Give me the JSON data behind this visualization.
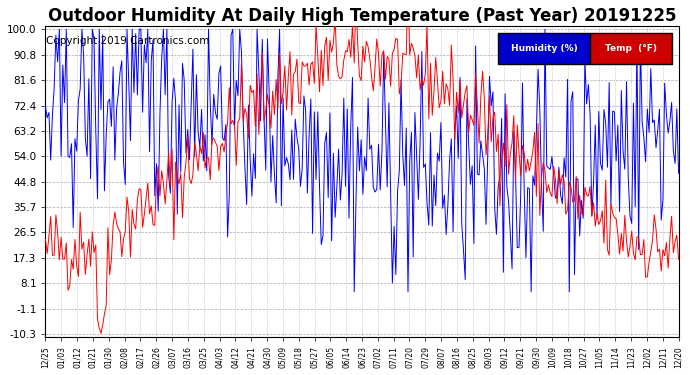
{
  "title": "Outdoor Humidity At Daily High Temperature (Past Year) 20191225",
  "copyright": "Copyright 2019 Cartronics.com",
  "legend_humidity": "Humidity (%)",
  "legend_temp": "Temp  (°F)",
  "legend_humidity_bg": "#0000cc",
  "legend_temp_bg": "#cc0000",
  "legend_text_color": "#ffffff",
  "humidity_color": "#0000ff",
  "temp_color": "#ff0000",
  "background_color": "#ffffff",
  "grid_color": "#aaaaaa",
  "title_fontsize": 12,
  "copyright_fontsize": 7.5,
  "yticks": [
    100.0,
    90.8,
    81.6,
    72.4,
    63.2,
    54.0,
    44.8,
    35.7,
    26.5,
    17.3,
    8.1,
    -1.1,
    -10.3
  ],
  "ymin": -10.3,
  "ymax": 100.0,
  "xtick_labels": [
    "12/25",
    "01/03",
    "01/12",
    "01/21",
    "01/30",
    "02/08",
    "02/17",
    "02/26",
    "03/07",
    "03/16",
    "03/25",
    "04/03",
    "04/12",
    "04/21",
    "04/30",
    "05/09",
    "05/18",
    "05/27",
    "06/05",
    "06/14",
    "06/23",
    "07/02",
    "07/11",
    "07/20",
    "07/29",
    "08/07",
    "08/16",
    "08/25",
    "09/03",
    "09/12",
    "09/21",
    "09/30",
    "10/09",
    "10/18",
    "10/27",
    "11/05",
    "11/14",
    "11/23",
    "12/02",
    "12/11",
    "12/20"
  ]
}
